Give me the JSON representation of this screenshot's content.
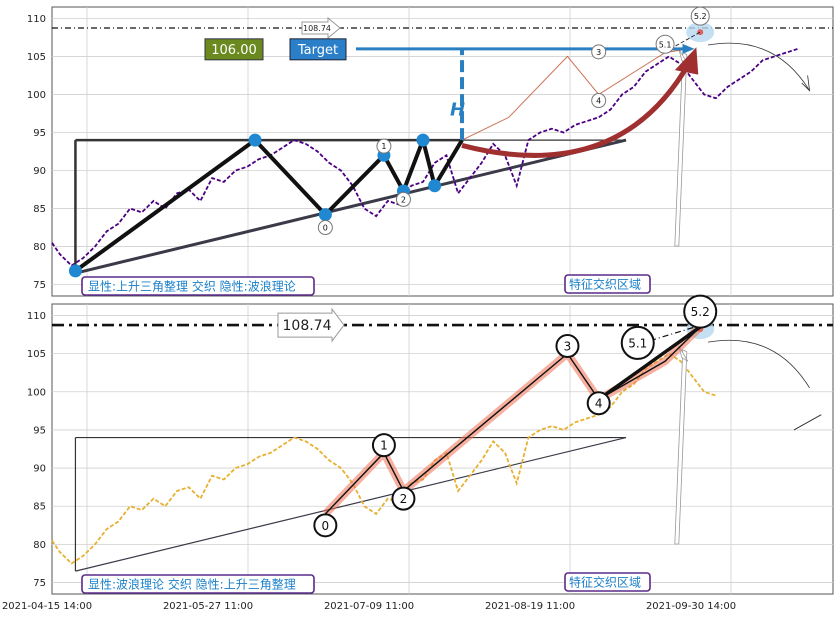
{
  "colors": {
    "grid": "#d0d0d0",
    "frame": "#555555",
    "top_series": "#4b0082",
    "bottom_series": "#e8b030",
    "wave_line": "#111111",
    "wave_glow": "#f07050",
    "triangle_top": "#333333",
    "triangle_support": "#3a3a48",
    "pivot_dot": "#1f88d0",
    "target_arrow": "#2a7fc0",
    "curve": "#a03030",
    "label_border": "#5a2a8a",
    "label_text": "#1a7fc8",
    "value_badge": "#6a8a20",
    "target_badge": "#2a7fc8"
  },
  "chart_data": [
    {
      "type": "line",
      "panel": "top",
      "x_ticks": [
        "2021-04-15 14:00",
        "2021-05-27 11:00",
        "2021-07-09 11:00",
        "2021-08-19 11:00",
        "2021-09-30 14:00"
      ],
      "x_index_range": [
        0,
        200
      ],
      "ylim": [
        73.5,
        111.5
      ],
      "y_ticks": [
        75,
        80,
        85,
        90,
        95,
        100,
        105,
        110
      ],
      "grid": true,
      "series": [
        {
          "style": "dashed",
          "x": [
            0,
            2,
            5,
            8,
            11,
            14,
            17,
            20,
            23,
            26,
            29,
            32,
            35,
            38,
            41,
            44,
            47,
            50,
            53,
            56,
            59,
            62,
            65,
            68,
            71,
            74,
            77,
            80,
            83,
            86,
            89,
            92,
            95,
            98,
            101,
            104,
            107,
            110,
            113,
            116,
            119,
            122,
            125,
            128,
            131,
            134,
            137,
            140,
            143,
            146,
            149,
            152,
            155,
            158,
            161,
            164,
            167,
            170,
            173,
            176,
            179,
            182,
            185,
            188,
            191
          ],
          "y": [
            80.5,
            79,
            77.5,
            78.5,
            80,
            82,
            83,
            85,
            84.5,
            86,
            85,
            87,
            87.5,
            86,
            89,
            88.5,
            90,
            90.5,
            91.5,
            92,
            93,
            94,
            93.5,
            92.5,
            91,
            90,
            88,
            85,
            84,
            86,
            85.5,
            88,
            88.5,
            91,
            92,
            87,
            89,
            91,
            93.5,
            92,
            88,
            94,
            95,
            95.5,
            95,
            96,
            96.5,
            97,
            98,
            100,
            101,
            103,
            104,
            105,
            104,
            102,
            100,
            99.5,
            101,
            102,
            103,
            104.5,
            105,
            105.5,
            106
          ]
        }
      ],
      "wave_path": {
        "x": [
          6,
          52,
          70,
          85,
          90,
          95,
          98,
          105
        ],
        "y": [
          76.8,
          94,
          84.2,
          92,
          87.3,
          94,
          88,
          94
        ]
      },
      "pivots": {
        "x": [
          6,
          52,
          70,
          85,
          90,
          95,
          98
        ],
        "y": [
          76.8,
          94,
          84.2,
          92,
          87.3,
          94,
          88
        ]
      },
      "impulse_path": {
        "x": [
          105,
          117,
          132,
          140,
          157,
          163
        ],
        "y": [
          94,
          97,
          105,
          100,
          105.5,
          106
        ]
      },
      "triangle": {
        "resistance": {
          "x": [
            6,
            105
          ],
          "y": [
            94,
            94
          ]
        },
        "left_side": {
          "x": [
            6,
            6
          ],
          "y": [
            94,
            76.5
          ]
        },
        "support": {
          "x": [
            6,
            147
          ],
          "y": [
            76.5,
            94
          ]
        }
      },
      "reference_line": {
        "y": 108.74,
        "label": "108.74"
      },
      "target": {
        "value": "106.00",
        "label": "Target",
        "y": 106
      },
      "h_marker": {
        "label": "H",
        "x": 105,
        "y": 94
      },
      "wave_labels": [
        {
          "text": "0",
          "x": 70,
          "y": 82.5
        },
        {
          "text": "1",
          "x": 85,
          "y": 93.2
        },
        {
          "text": "2",
          "x": 90,
          "y": 86.2
        },
        {
          "text": "3",
          "x": 140,
          "y": 105.6
        },
        {
          "text": "4",
          "x": 140,
          "y": 99.2
        },
        {
          "text": "5.1",
          "x": 157,
          "y": 106.6
        },
        {
          "text": "5.2",
          "x": 166,
          "y": 110.3
        }
      ],
      "annotation_left": "显性:上升三角整理 交织 隐性:波浪理论",
      "annotation_right": "特征交织区域"
    },
    {
      "type": "line",
      "panel": "bottom",
      "x_ticks": [
        "2021-04-15 14:00",
        "2021-05-27 11:00",
        "2021-07-09 11:00",
        "2021-08-19 11:00",
        "2021-09-30 14:00"
      ],
      "x_index_range": [
        0,
        200
      ],
      "ylim": [
        73.5,
        111.5
      ],
      "y_ticks": [
        75,
        80,
        85,
        90,
        95,
        100,
        105,
        110
      ],
      "grid": true,
      "series": [
        {
          "style": "dashed",
          "x": [
            0,
            2,
            5,
            8,
            11,
            14,
            17,
            20,
            23,
            26,
            29,
            32,
            35,
            38,
            41,
            44,
            47,
            50,
            53,
            56,
            59,
            62,
            65,
            68,
            71,
            74,
            77,
            80,
            83,
            86,
            89,
            92,
            95,
            98,
            101,
            104,
            107,
            110,
            113,
            116,
            119,
            122,
            125,
            128,
            131,
            134,
            137,
            140,
            143,
            146,
            149,
            152,
            155,
            158,
            161,
            164,
            167,
            170
          ],
          "y": [
            80.5,
            79,
            77.5,
            78.5,
            80,
            82,
            83,
            85,
            84.5,
            86,
            85,
            87,
            87.5,
            86,
            89,
            88.5,
            90,
            90.5,
            91.5,
            92,
            93,
            94,
            93.5,
            92.5,
            91,
            90,
            88,
            85,
            84,
            86,
            85.5,
            88,
            88.5,
            91,
            92,
            87,
            89,
            91,
            93.5,
            92,
            88,
            94,
            95,
            95.5,
            95,
            96,
            96.5,
            97,
            98,
            100,
            101,
            103,
            104,
            105,
            104,
            102,
            100,
            99.5
          ]
        }
      ],
      "wave_path": {
        "x": [
          70,
          85,
          90,
          132,
          140,
          157,
          166
        ],
        "y": [
          84,
          92,
          87,
          105,
          99,
          104,
          108.5
        ]
      },
      "triangle": {
        "resistance": {
          "x": [
            6,
            147
          ],
          "y": [
            94,
            94
          ]
        },
        "left_side": {
          "x": [
            6,
            6
          ],
          "y": [
            94,
            76.5
          ]
        },
        "support": {
          "x": [
            6,
            147
          ],
          "y": [
            76.5,
            94
          ]
        }
      },
      "reference_line": {
        "y": 108.74,
        "label": "108.74"
      },
      "wave_labels": [
        {
          "text": "0",
          "x": 70,
          "y": 82.5
        },
        {
          "text": "1",
          "x": 85,
          "y": 93
        },
        {
          "text": "2",
          "x": 90,
          "y": 86
        },
        {
          "text": "3",
          "x": 132,
          "y": 106
        },
        {
          "text": "4",
          "x": 140,
          "y": 98.5
        },
        {
          "text": "5.1",
          "x": 150,
          "y": 106.4
        },
        {
          "text": "5.2",
          "x": 166,
          "y": 110.5
        }
      ],
      "annotation_left": "显性:波浪理论 交织 隐性:上升三角整理",
      "annotation_right": "特征交织区域"
    }
  ]
}
